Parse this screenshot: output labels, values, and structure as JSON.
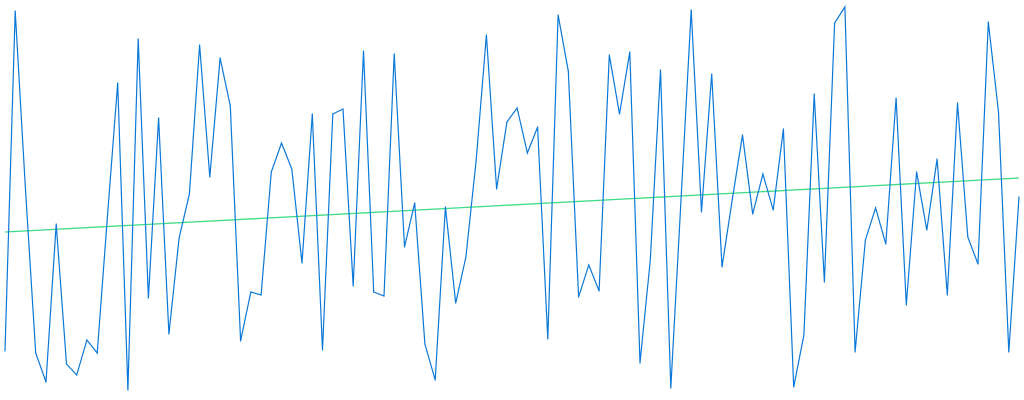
{
  "chart_data": {
    "type": "line",
    "title": "",
    "xlabel": "",
    "ylabel": "",
    "axes_visible": false,
    "grid": false,
    "legend": "none",
    "x": [
      1,
      2,
      3,
      4,
      5,
      6,
      7,
      8,
      9,
      10,
      11,
      12,
      13,
      14,
      15,
      16,
      17,
      18,
      19,
      20,
      21,
      22,
      23,
      24,
      25,
      26,
      27,
      28,
      29,
      30,
      31,
      32,
      33,
      34,
      35,
      36,
      37,
      38,
      39,
      40,
      41,
      42,
      43,
      44,
      45,
      46,
      47,
      48,
      49,
      50,
      51,
      52,
      53,
      54,
      55,
      56,
      57,
      58,
      59,
      60,
      61,
      62,
      63,
      64,
      65,
      66,
      67,
      68,
      69,
      70,
      71,
      72,
      73,
      74,
      75,
      76,
      77,
      78,
      79,
      80,
      81,
      82,
      83,
      84,
      85,
      86,
      87,
      88,
      89,
      90,
      91,
      92,
      93,
      94,
      95,
      96,
      97,
      98,
      99,
      100
    ],
    "xlim": [
      1,
      100
    ],
    "ylim": [
      0,
      400
    ],
    "series": [
      {
        "role": "data",
        "color": "#0a78d8",
        "values": [
          49,
          389,
          210,
          47,
          18,
          176,
          36,
          25,
          60,
          47,
          183,
          317,
          10,
          361,
          102,
          282,
          66,
          162,
          206,
          355,
          223,
          342,
          294,
          59,
          108,
          105,
          228,
          257,
          231,
          137,
          286,
          50,
          286,
          291,
          114,
          349,
          108,
          104,
          346,
          153,
          197,
          56,
          20,
          193,
          97,
          143,
          240,
          365,
          211,
          278,
          292,
          247,
          273,
          61,
          385,
          329,
          103,
          135,
          109,
          345,
          286,
          348,
          37,
          140,
          330,
          12,
          200,
          390,
          188,
          326,
          133,
          200,
          265,
          186,
          226,
          190,
          271,
          13,
          65,
          306,
          118,
          377,
          393,
          48,
          160,
          192,
          156,
          302,
          95,
          228,
          170,
          241,
          105,
          297,
          163,
          136,
          378,
          288,
          48,
          203
        ]
      },
      {
        "role": "trend",
        "color": "#3ddc84",
        "values_at_ends": [
          168,
          222
        ]
      }
    ]
  }
}
